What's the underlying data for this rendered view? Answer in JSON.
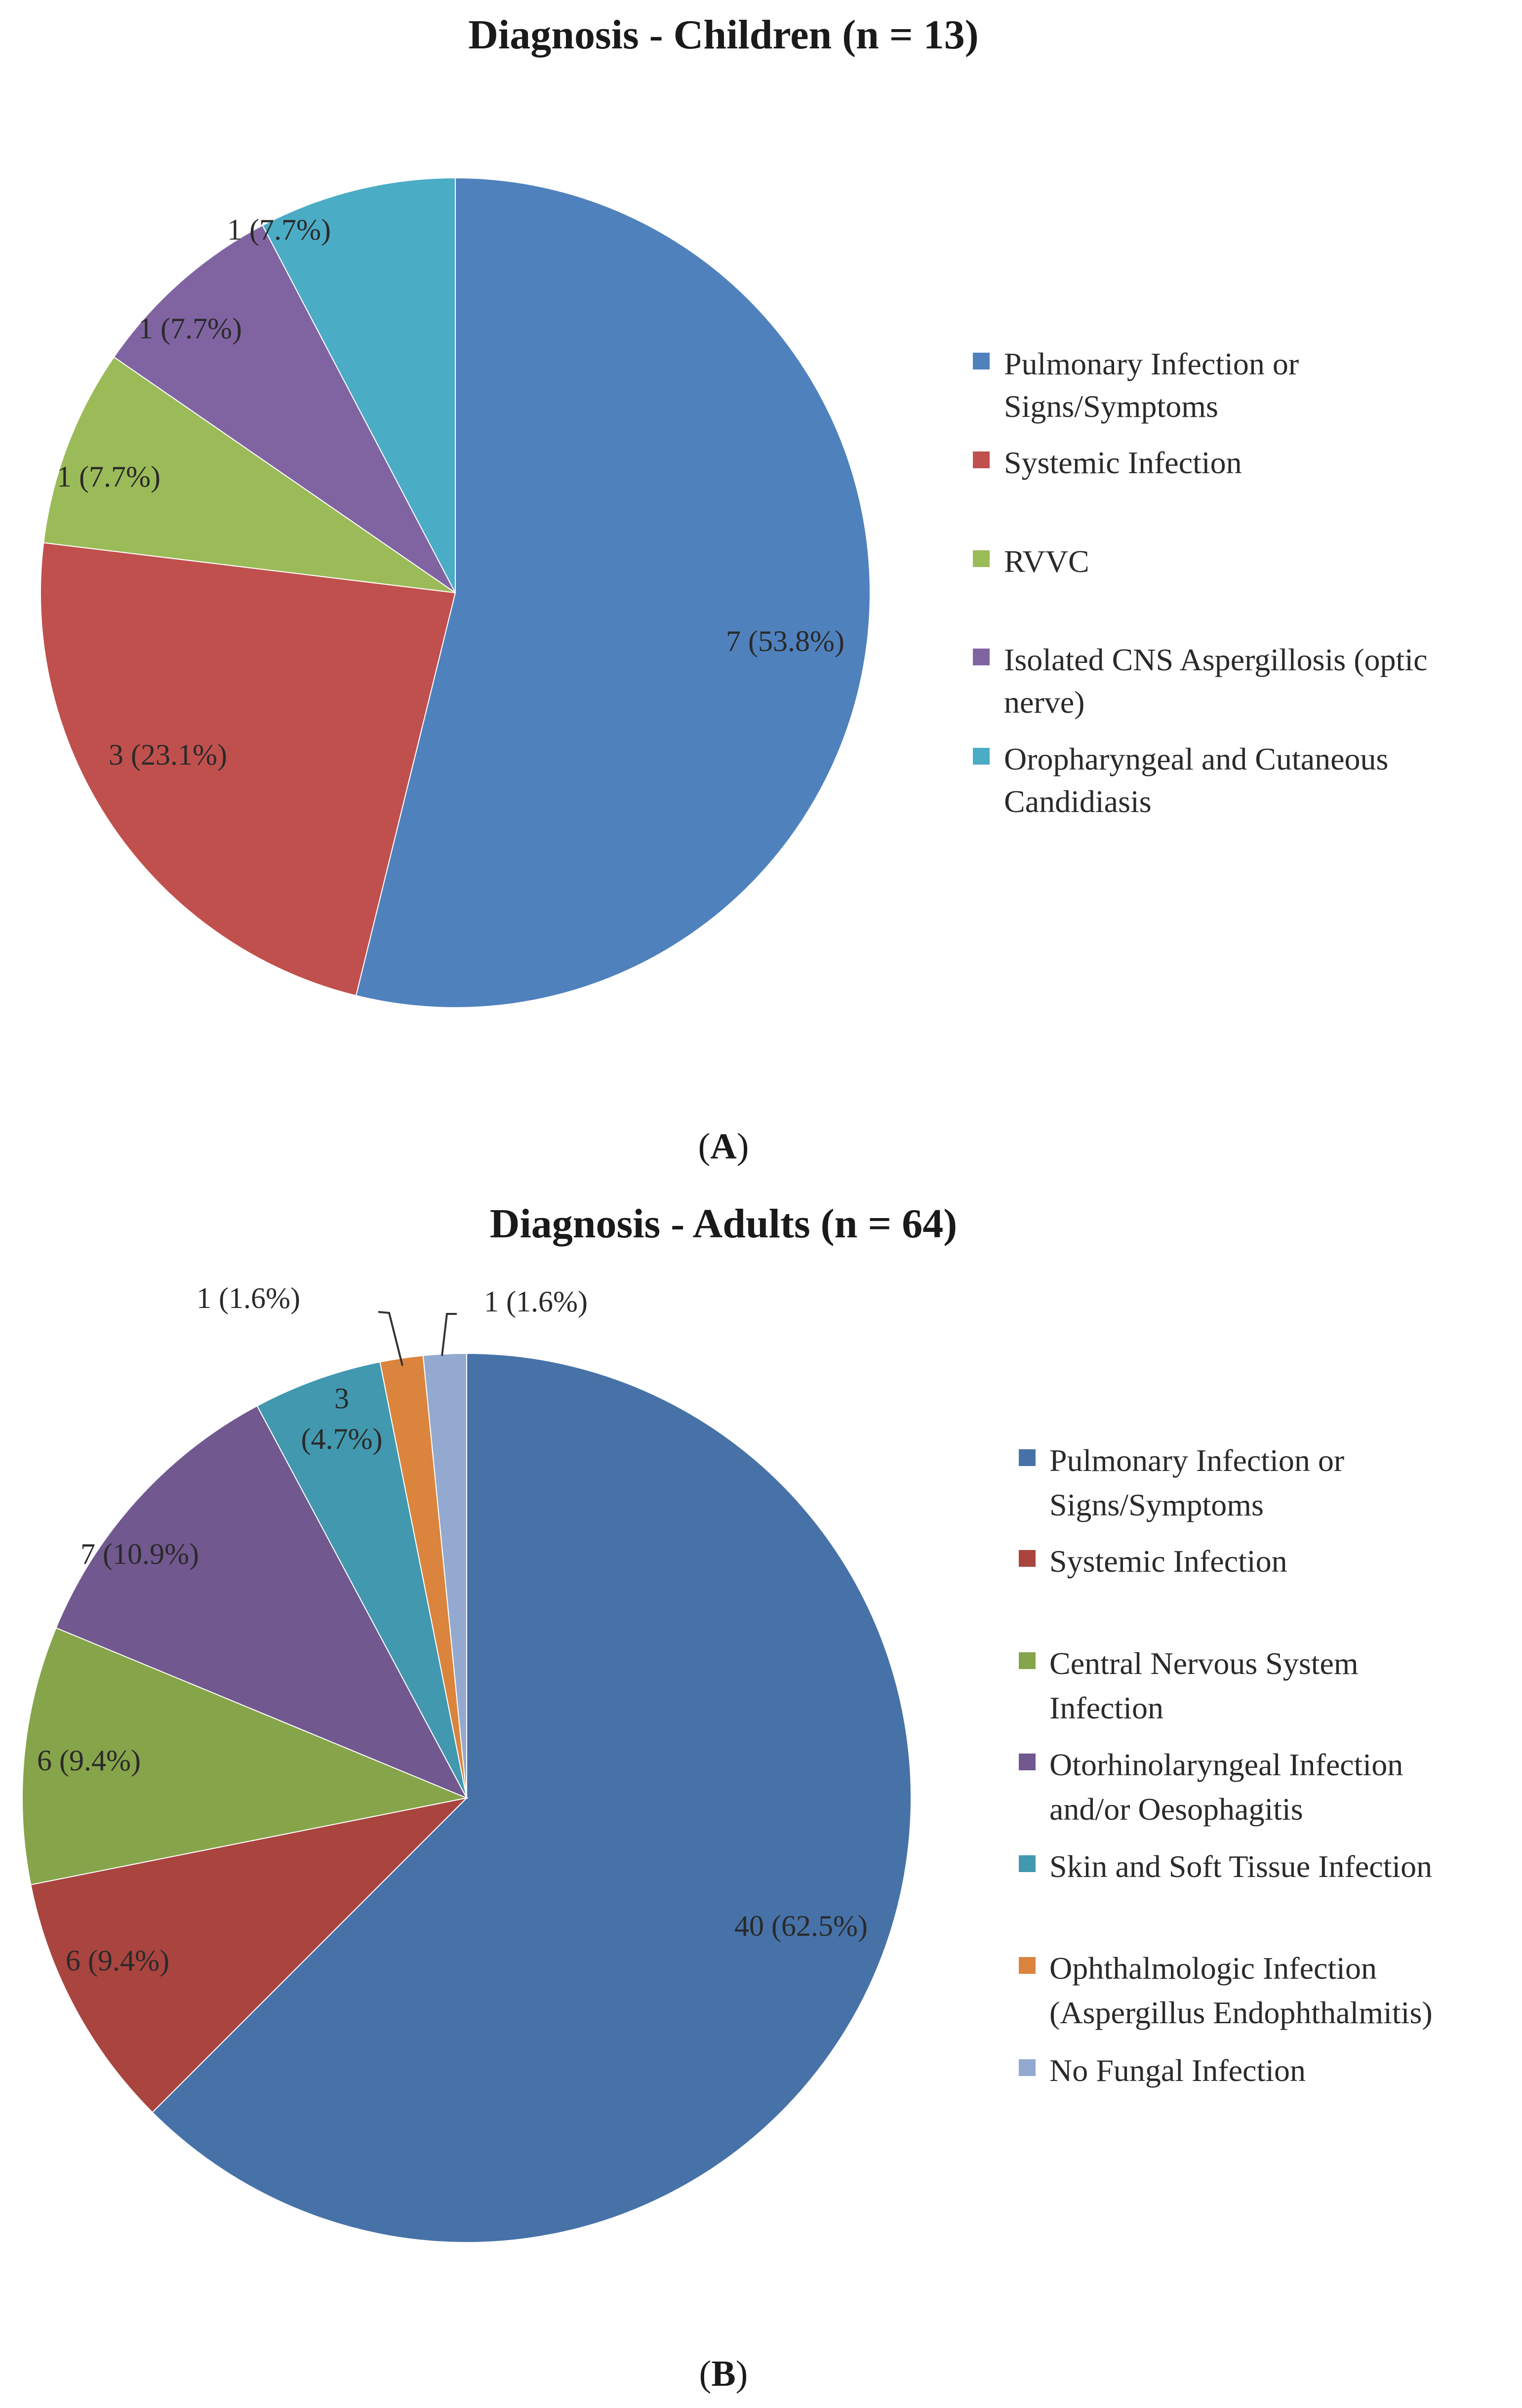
{
  "chart_data": [
    {
      "type": "pie",
      "title": "Diagnosis - Children (n = 13)",
      "panel": "A",
      "categories": [
        "Pulmonary Infection or Signs/Symptoms",
        "Systemic Infection",
        "RVVC",
        "Isolated CNS Aspergillosis (optic nerve)",
        "Oropharyngeal and Cutaneous Candidiasis"
      ],
      "values": [
        7,
        3,
        1,
        1,
        1
      ],
      "labels": [
        "7 (53.8%)",
        "3 (23.1%)",
        "1 (7.7%)",
        "1 (7.7%)",
        "1 (7.7%)"
      ],
      "colors": [
        "#4f81bd",
        "#c0504d",
        "#9bbb59",
        "#8064a2",
        "#4bacc6"
      ],
      "legend_lines": [
        [
          "Pulmonary Infection or",
          "Signs/Symptoms"
        ],
        [
          "Systemic Infection"
        ],
        [
          "RVVC"
        ],
        [
          "Isolated CNS Aspergillosis (optic",
          "nerve)"
        ],
        [
          "Oropharyngeal and Cutaneous",
          "Candidiasis"
        ]
      ],
      "legend_position": "right"
    },
    {
      "type": "pie",
      "title": "Diagnosis - Adults (n = 64)",
      "panel": "B",
      "categories": [
        "Pulmonary Infection or Signs/Symptoms",
        "Systemic Infection",
        "Central Nervous System Infection",
        "Otorhinolaryngeal Infection and/or Oesophagitis",
        "Skin and Soft Tissue Infection",
        "Ophthalmologic Infection (Aspergillus Endophthalmitis)",
        "No Fungal Infection"
      ],
      "values": [
        40,
        6,
        6,
        7,
        3,
        1,
        1
      ],
      "labels": [
        "40 (62.5%)",
        "6 (9.4%)",
        "6 (9.4%)",
        "7 (10.9%)",
        "3 (4.7%)",
        "1 (1.6%)",
        "1 (1.6%)"
      ],
      "label_lines": [
        [
          "40 (62.5%)"
        ],
        [
          "6 (9.4%)"
        ],
        [
          "6 (9.4%)"
        ],
        [
          "7 (10.9%)"
        ],
        [
          "3",
          "(4.7%)"
        ],
        [
          "1 (1.6%)"
        ],
        [
          "1 (1.6%)"
        ]
      ],
      "colors": [
        "#4672a8",
        "#a9443f",
        "#86a44a",
        "#71588f",
        "#4198af",
        "#db843d",
        "#93a9cf"
      ],
      "legend_lines": [
        [
          "Pulmonary Infection or",
          "Signs/Symptoms"
        ],
        [
          "Systemic Infection"
        ],
        [
          "Central Nervous System",
          "Infection"
        ],
        [
          "Otorhinolaryngeal Infection",
          "and/or Oesophagitis"
        ],
        [
          "Skin and Soft Tissue Infection"
        ],
        [
          "Ophthalmologic Infection",
          "(Aspergillus Endophthalmitis)"
        ],
        [
          "No Fungal Infection"
        ]
      ],
      "legend_position": "right"
    }
  ]
}
